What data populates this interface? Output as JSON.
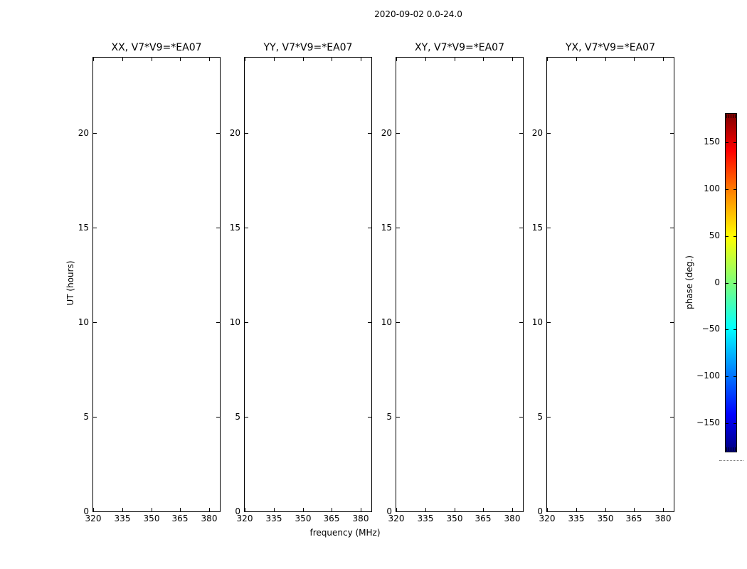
{
  "figure": {
    "suptitle": "2020-09-02 0.0-24.0"
  },
  "chart_data": {
    "type": "heatmap",
    "title": "2020-09-02 0.0-24.0",
    "subtitle_note": "dynamic-spectrum phase panels; all four panels are blank (no data plotted)",
    "panels": [
      {
        "title": "XX, V7*V9=*EA07",
        "values": []
      },
      {
        "title": "YY, V7*V9=*EA07",
        "values": []
      },
      {
        "title": "XY, V7*V9=*EA07",
        "values": []
      },
      {
        "title": "YX, V7*V9=*EA07",
        "values": []
      }
    ],
    "xlabel": "frequency (MHz)",
    "ylabel": "UT (hours)",
    "x_axis": {
      "ticks": [
        320,
        335,
        350,
        365,
        380
      ],
      "tick_labels": [
        "320",
        "335",
        "350",
        "365",
        "380"
      ],
      "range": [
        320,
        385.5
      ]
    },
    "y_axis": {
      "ticks": [
        0,
        5,
        10,
        15,
        20
      ],
      "tick_labels": [
        "0",
        "5",
        "10",
        "15",
        "20"
      ],
      "range": [
        0,
        24
      ]
    },
    "colorbar": {
      "label": "phase (deg.)",
      "ticks": [
        150,
        100,
        50,
        0,
        -50,
        -100,
        -150
      ],
      "tick_labels": [
        "150",
        "100",
        "50",
        "0",
        "−50",
        "−100",
        "−150"
      ],
      "range": [
        -180,
        180
      ],
      "colormap": "jet",
      "colormap_hex_top_to_bottom": [
        "#7f0000",
        "#ff0000",
        "#ffff00",
        "#7dff7a",
        "#00ffff",
        "#0000ff",
        "#00007f"
      ]
    },
    "grid": false,
    "legend": false,
    "background_color": "#ffffff",
    "frame_color": "#000000"
  }
}
